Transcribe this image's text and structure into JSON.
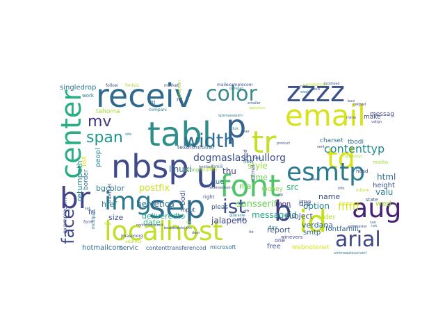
{
  "words": [
    {
      "text": "zzzz",
      "color": "#3b5288"
    },
    {
      "text": "receiv",
      "color": "#2f6a8e"
    },
    {
      "text": "email",
      "color": "#d7e219"
    },
    {
      "text": "color",
      "color": "#3a8a8c"
    },
    {
      "text": "tabl",
      "color": "#2e8e8c"
    },
    {
      "text": "p",
      "color": "#33628d"
    },
    {
      "text": "center",
      "color": "#28ae80"
    },
    {
      "text": "tr",
      "color": "#c5df24"
    },
    {
      "text": "td",
      "color": "#dae21b"
    },
    {
      "text": "mv",
      "color": "#463480"
    },
    {
      "text": "width",
      "color": "#2f6b8e"
    },
    {
      "text": "esmtp",
      "color": "#2a7b8e"
    },
    {
      "text": "nbsp",
      "color": "#3e4a89"
    },
    {
      "text": "u",
      "color": "#3c4d8a"
    },
    {
      "text": "font",
      "color": "#51c46b"
    },
    {
      "text": "span",
      "color": "#1f978b"
    },
    {
      "text": "br",
      "color": "#404387"
    },
    {
      "text": "img",
      "color": "#2a788e"
    },
    {
      "text": "sep",
      "color": "#2f6c8e"
    },
    {
      "text": "ist",
      "color": "#3b528b"
    },
    {
      "text": "b",
      "color": "#443a83"
    },
    {
      "text": "id",
      "color": "#c6e020"
    },
    {
      "text": "aug",
      "color": "#482173"
    },
    {
      "text": "localhost",
      "color": "#c0df25"
    },
    {
      "text": "arial",
      "color": "#3f4788"
    },
    {
      "text": "face",
      "color": "#3f4889"
    },
    {
      "text": "contenttyp",
      "color": "#23898e"
    },
    {
      "text": "dogmaslashnullorg",
      "color": "#3d4e8a"
    },
    {
      "text": "linuxi",
      "color": "#35608d"
    },
    {
      "text": "thu",
      "color": "#443a83"
    },
    {
      "text": "style",
      "color": "#9bd93c"
    },
    {
      "text": "time",
      "color": "#6ccd5a"
    },
    {
      "text": "mail",
      "color": "#70cf57"
    },
    {
      "text": "money",
      "color": "#8fd744"
    },
    {
      "text": "src",
      "color": "#2fb47c"
    },
    {
      "text": "html",
      "color": "#2f6b8e"
    },
    {
      "text": "tue",
      "color": "#2a788e"
    },
    {
      "text": "mon",
      "color": "#482677"
    },
    {
      "text": "div",
      "color": "#3b528b"
    },
    {
      "text": "name",
      "color": "#3e4c8a"
    },
    {
      "text": "valu",
      "color": "#287d8e"
    },
    {
      "text": "wed",
      "color": "#a2da37"
    },
    {
      "text": "bgcolor",
      "color": "#29798e"
    },
    {
      "text": "postfix",
      "color": "#cae11f"
    },
    {
      "text": "sansserif",
      "color": "#6ece58"
    },
    {
      "text": "option",
      "color": "#25858e"
    },
    {
      "text": "messageid",
      "color": "#22a785"
    },
    {
      "text": "ffffff",
      "color": "#d2e21b"
    },
    {
      "text": "helvetica",
      "color": "#2d708e"
    },
    {
      "text": "deliveredto",
      "color": "#22a884"
    },
    {
      "text": "bodi",
      "color": "#3d4e8a"
    },
    {
      "text": "subject",
      "color": "#3d4e8a"
    },
    {
      "text": "verdana",
      "color": "#31688e"
    },
    {
      "text": "href",
      "color": "#2a788e"
    },
    {
      "text": "fri",
      "color": "#433e85"
    },
    {
      "text": "size",
      "color": "#3b528b"
    },
    {
      "text": "date",
      "color": "#35b779"
    },
    {
      "text": "jalapeno",
      "color": "#3e4a89"
    },
    {
      "text": "smtp",
      "color": "#31688e"
    },
    {
      "text": "report",
      "color": "#39568c"
    },
    {
      "text": "order",
      "color": "#b5de2b"
    },
    {
      "text": "free",
      "color": "#3b528b"
    },
    {
      "text": "webnotenet",
      "color": "#d8e219"
    },
    {
      "text": "returnpath",
      "color": "#228c8d"
    },
    {
      "text": "list",
      "color": "#d0e11c"
    },
    {
      "text": "peopl",
      "color": "#24878e"
    },
    {
      "text": "charset",
      "color": "#2c728e"
    },
    {
      "text": "tbodi",
      "color": "#2f6c8e"
    },
    {
      "text": "messag",
      "color": "#3f4889"
    },
    {
      "text": "fontfamili",
      "color": "#31678e"
    },
    {
      "text": "height",
      "color": "#3b528b"
    },
    {
      "text": "make",
      "color": "#3f4889"
    },
    {
      "text": "singledrop",
      "color": "#2a788e"
    },
    {
      "text": "tahoma",
      "color": "#a5db36"
    },
    {
      "text": "border",
      "color": "#2c738e"
    },
    {
      "text": "hotmailcom",
      "color": "#2d708e"
    },
    {
      "text": "servic",
      "color": "#2e6f8e"
    },
    {
      "text": "contenttransferencod",
      "color": "#39568c"
    },
    {
      "text": "microsoft",
      "color": "#2e6e8e"
    },
    {
      "text": "examplecom",
      "color": "#3e4c8a"
    },
    {
      "text": "input",
      "color": "#3d4d8a"
    },
    {
      "text": "texthtml",
      "color": "#38588c"
    },
    {
      "text": "offer",
      "color": "#2f6c8e"
    },
    {
      "text": "pleas",
      "color": "#3b528b"
    },
    {
      "text": "send",
      "color": "#3b528b"
    },
    {
      "text": "new",
      "color": "#2c728e"
    },
    {
      "text": "one",
      "color": "#3e4989"
    },
    {
      "text": "day",
      "color": "#2a788e"
    },
    {
      "text": "titl",
      "color": "#2e6e8e"
    },
    {
      "text": "work",
      "color": "#2c728e"
    },
    {
      "text": "compani",
      "color": "#2a788e"
    },
    {
      "text": "nt",
      "color": "#3e4a89"
    },
    {
      "text": "right",
      "color": "#3b528b"
    },
    {
      "text": "internet",
      "color": "#3b528b"
    },
    {
      "text": "program",
      "color": "#9dd93b"
    },
    {
      "text": "normal",
      "color": "#3b528b"
    },
    {
      "text": "strong",
      "color": "#6ccd5a"
    },
    {
      "text": "head",
      "color": "#3b528b"
    },
    {
      "text": "mailto",
      "color": "#a0da39"
    },
    {
      "text": "imap",
      "color": "#3e4a89"
    },
    {
      "text": "state",
      "color": "#3b528b"
    },
    {
      "text": "fontsiz",
      "color": "#a8db34"
    },
    {
      "text": "market",
      "color": "#3b528b"
    },
    {
      "text": "follow",
      "color": "#3b528b"
    },
    {
      "text": "mailexamplecom",
      "color": "#3b528b"
    },
    {
      "text": "unsubscrib",
      "color": "#b5de2b"
    },
    {
      "text": "jmasonorg",
      "color": "#3b528b"
    },
    {
      "text": "famili",
      "color": "#2f6c8e"
    },
    {
      "text": "address",
      "color": "#b8de29"
    },
    {
      "text": "form",
      "color": "#3b528b"
    },
    {
      "text": "winevers",
      "color": "#3e4a89"
    },
    {
      "text": "textplain",
      "color": "#b5de2b"
    },
    {
      "text": "addr",
      "color": "#3b528b"
    },
    {
      "text": "multipart",
      "color": "#2a788e"
    },
    {
      "text": "fontface",
      "color": "#3b528b"
    },
    {
      "text": "inform",
      "color": "#bddf26"
    },
    {
      "text": "lighterthan",
      "color": "#a5db36"
    },
    {
      "text": "click",
      "color": "#2a788e"
    },
    {
      "text": "product",
      "color": "#3b528b"
    },
    {
      "text": "receivedfrom",
      "color": "#3e4a89"
    },
    {
      "text": "webmaster",
      "color": "#3b528b"
    },
    {
      "text": "opportun",
      "color": "#b5de2b"
    },
    {
      "text": "xmailer",
      "color": "#3b528b"
    },
    {
      "text": "cellspac",
      "color": "#2a788e"
    },
    {
      "text": "busi",
      "color": "#3b528b"
    },
    {
      "text": "cellpad",
      "color": "#3e4a89"
    },
    {
      "text": "mime",
      "color": "#3b528b"
    },
    {
      "text": "xmimeautoconvert",
      "color": "#2a788e"
    },
    {
      "text": "valign",
      "color": "#3b528b"
    },
    {
      "text": "contentdisposit",
      "color": "#3e4a89"
    },
    {
      "text": "spamassassin",
      "color": "#2a788e"
    },
    {
      "text": "dear",
      "color": "#3b528b"
    },
    {
      "text": "user",
      "color": "#3b528b"
    },
    {
      "text": "site",
      "color": "#2a788e"
    },
    {
      "text": "save",
      "color": "#3e4a89"
    },
    {
      "text": "bestdealstojohn",
      "color": "#3b528b"
    },
    {
      "text": "sat",
      "color": "#3b528b"
    },
    {
      "text": "fore",
      "color": "#b5de2b"
    },
    {
      "text": "ltd",
      "color": "#3b528b"
    },
    {
      "text": "tdmad",
      "color": "#2a788e"
    },
    {
      "text": "sent",
      "color": "#3e4a89"
    },
    {
      "text": "usa",
      "color": "#3b528b"
    },
    {
      "text": "list",
      "color": "#b5de2b"
    },
    {
      "text": "sun",
      "color": "#3b528b"
    },
    {
      "text": "net",
      "color": "#2a788e"
    },
    {
      "text": "info",
      "color": "#3e4a89"
    },
    {
      "text": "call",
      "color": "#3b528b"
    },
    {
      "text": "rate",
      "color": "#3b528b"
    },
    {
      "text": "week",
      "color": "#2a788e"
    },
    {
      "text": "text",
      "color": "#b5de2b"
    },
    {
      "text": "busi",
      "color": "#3b528b"
    },
    {
      "text": "lockheed",
      "color": "#3b528b"
    },
    {
      "text": "guarante",
      "color": "#2a788e"
    },
    {
      "text": "offr",
      "color": "#3e4a89"
    },
    {
      "text": "zip",
      "color": "#3b528b"
    }
  ]
}
